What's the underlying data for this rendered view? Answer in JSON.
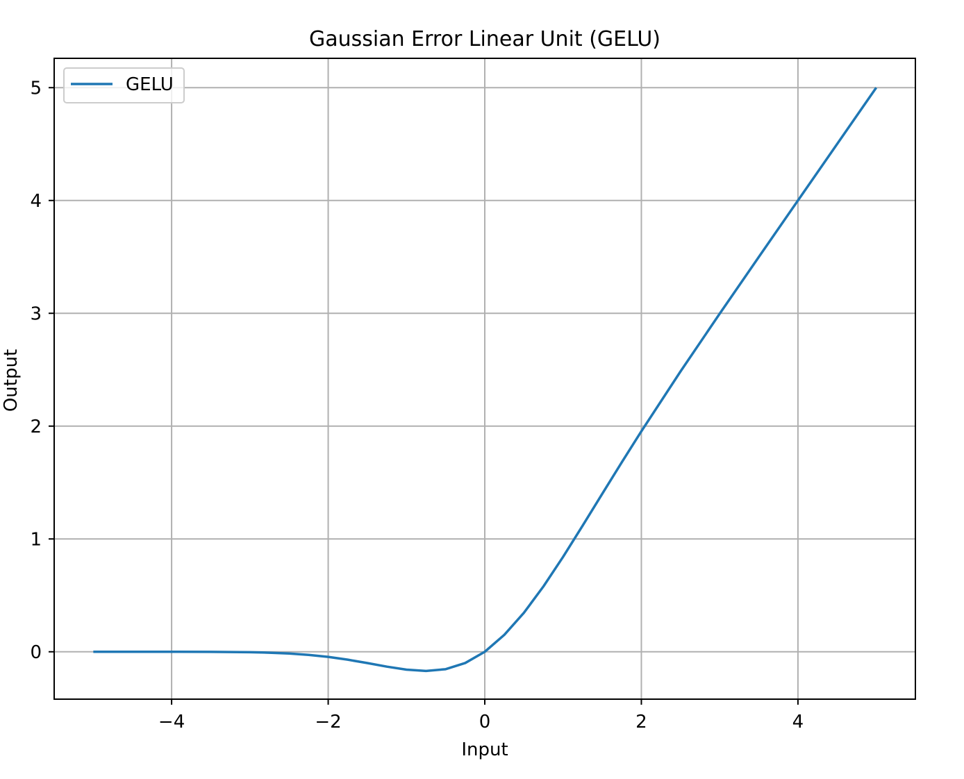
{
  "chart_data": {
    "type": "line",
    "title": "Gaussian Error Linear Unit (GELU)",
    "xlabel": "Input",
    "ylabel": "Output",
    "xlim": [
      -5.5,
      5.5
    ],
    "ylim": [
      -0.42,
      5.26
    ],
    "xticks": [
      -4,
      -2,
      0,
      2,
      4
    ],
    "xtick_labels": [
      "−4",
      "−2",
      "0",
      "2",
      "4"
    ],
    "yticks": [
      0,
      1,
      2,
      3,
      4,
      5
    ],
    "ytick_labels": [
      "0",
      "1",
      "2",
      "3",
      "4",
      "5"
    ],
    "grid": true,
    "legend_position": "upper-left",
    "series": [
      {
        "name": "GELU",
        "color": "#1f77b4",
        "x": [
          -5.0,
          -4.5,
          -4.0,
          -3.5,
          -3.0,
          -2.75,
          -2.5,
          -2.25,
          -2.0,
          -1.75,
          -1.5,
          -1.25,
          -1.0,
          -0.75,
          -0.5,
          -0.25,
          0.0,
          0.25,
          0.5,
          0.75,
          1.0,
          1.25,
          1.5,
          1.75,
          2.0,
          2.5,
          3.0,
          3.5,
          4.0,
          4.5,
          5.0
        ],
        "y": [
          0.0,
          0.0,
          -0.0001,
          -0.0008,
          -0.004,
          -0.0082,
          -0.0155,
          -0.0274,
          -0.0455,
          -0.0702,
          -0.1002,
          -0.132,
          -0.1587,
          -0.17,
          -0.1543,
          -0.0997,
          0.0,
          0.1503,
          0.3457,
          0.58,
          0.8413,
          1.118,
          1.3998,
          1.6798,
          1.9545,
          2.4845,
          2.996,
          3.4992,
          3.9999,
          4.5,
          5.0
        ]
      }
    ]
  }
}
